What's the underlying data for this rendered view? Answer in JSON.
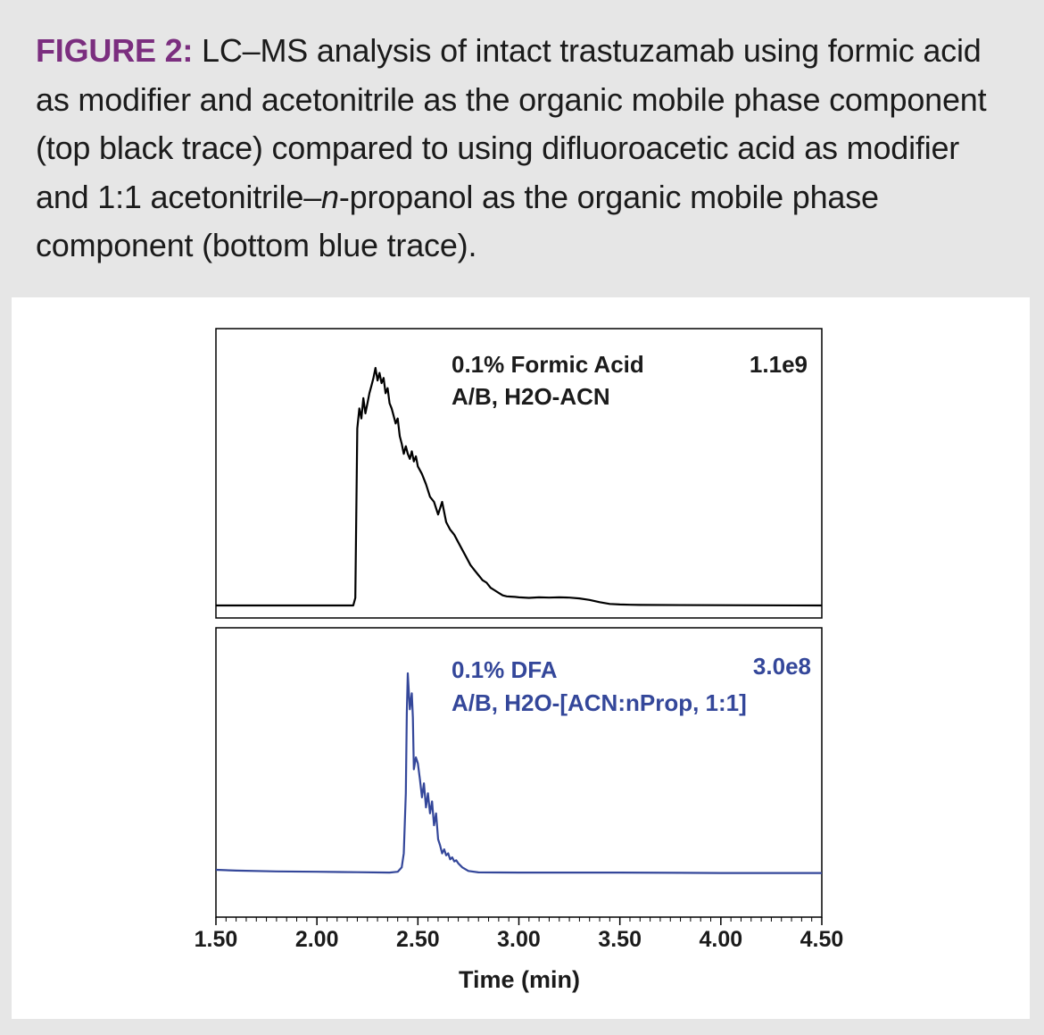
{
  "caption": {
    "label": "FIGURE 2:",
    "text_part1": " LC–MS analysis of intact trastuzamab using formic acid as modifier and acetonitrile as the organic mobile phase component (top black trace) compared to using difluoroacetic acid as modifier and 1:1 acetonitrile–",
    "text_italic": "n",
    "text_part2": "-propanol as the organic mobile phase component (bottom blue trace)."
  },
  "colors": {
    "caption_label": "#7b2e7f",
    "top_trace": "#000000",
    "bottom_trace": "#34479a",
    "background": "#e6e6e6",
    "panel": "#ffffff"
  },
  "chart_data": [
    {
      "type": "line",
      "panel": "top",
      "labels": [
        "0.1% Formic Acid",
        "A/B, H2O-ACN"
      ],
      "scale_label": "1.1e9",
      "xlim": [
        1.5,
        4.5
      ],
      "ylim": [
        0,
        1
      ],
      "x": [
        1.5,
        2.0,
        2.18,
        2.19,
        2.2,
        2.21,
        2.22,
        2.23,
        2.24,
        2.25,
        2.26,
        2.27,
        2.28,
        2.29,
        2.3,
        2.31,
        2.32,
        2.33,
        2.34,
        2.35,
        2.36,
        2.37,
        2.38,
        2.39,
        2.4,
        2.41,
        2.42,
        2.43,
        2.44,
        2.45,
        2.46,
        2.47,
        2.48,
        2.49,
        2.5,
        2.52,
        2.54,
        2.56,
        2.58,
        2.6,
        2.62,
        2.64,
        2.66,
        2.68,
        2.7,
        2.72,
        2.74,
        2.76,
        2.78,
        2.8,
        2.82,
        2.84,
        2.86,
        2.88,
        2.9,
        2.92,
        2.94,
        2.96,
        2.98,
        3.0,
        3.05,
        3.1,
        3.15,
        3.2,
        3.25,
        3.3,
        3.35,
        3.4,
        3.45,
        3.5,
        3.55,
        3.6,
        4.0,
        4.5
      ],
      "y": [
        0.0,
        0.0,
        0.0,
        0.03,
        0.7,
        0.78,
        0.74,
        0.82,
        0.76,
        0.8,
        0.84,
        0.87,
        0.9,
        0.94,
        0.89,
        0.92,
        0.88,
        0.9,
        0.84,
        0.86,
        0.8,
        0.78,
        0.75,
        0.72,
        0.74,
        0.67,
        0.64,
        0.6,
        0.63,
        0.6,
        0.58,
        0.61,
        0.57,
        0.59,
        0.55,
        0.52,
        0.48,
        0.43,
        0.41,
        0.36,
        0.41,
        0.33,
        0.3,
        0.28,
        0.25,
        0.22,
        0.19,
        0.16,
        0.14,
        0.12,
        0.1,
        0.09,
        0.07,
        0.06,
        0.05,
        0.04,
        0.036,
        0.035,
        0.034,
        0.032,
        0.03,
        0.032,
        0.031,
        0.032,
        0.031,
        0.028,
        0.022,
        0.013,
        0.006,
        0.004,
        0.003,
        0.002,
        0.001,
        0.0
      ]
    },
    {
      "type": "line",
      "panel": "bottom",
      "labels": [
        "0.1% DFA",
        "A/B, H2O-[ACN:nProp, 1:1]"
      ],
      "scale_label": "3.0e8",
      "xlim": [
        1.5,
        4.5
      ],
      "ylim": [
        0,
        1
      ],
      "xlabel": "Time (min)",
      "xticks": [
        "1.50",
        "2.00",
        "2.50",
        "3.00",
        "3.50",
        "4.00",
        "4.50"
      ],
      "x": [
        1.5,
        1.6,
        1.8,
        2.0,
        2.2,
        2.36,
        2.4,
        2.42,
        2.43,
        2.44,
        2.445,
        2.45,
        2.46,
        2.47,
        2.475,
        2.48,
        2.49,
        2.5,
        2.51,
        2.52,
        2.53,
        2.54,
        2.55,
        2.56,
        2.57,
        2.58,
        2.59,
        2.6,
        2.61,
        2.62,
        2.63,
        2.64,
        2.65,
        2.66,
        2.67,
        2.68,
        2.69,
        2.7,
        2.72,
        2.75,
        2.8,
        3.0,
        3.5,
        4.0,
        4.5
      ],
      "y": [
        0.018,
        0.014,
        0.01,
        0.008,
        0.006,
        0.004,
        0.008,
        0.03,
        0.1,
        0.4,
        0.8,
        1.0,
        0.82,
        0.9,
        0.78,
        0.52,
        0.58,
        0.55,
        0.47,
        0.38,
        0.45,
        0.33,
        0.4,
        0.3,
        0.36,
        0.24,
        0.3,
        0.17,
        0.14,
        0.1,
        0.12,
        0.09,
        0.1,
        0.07,
        0.08,
        0.06,
        0.065,
        0.05,
        0.03,
        0.012,
        0.005,
        0.004,
        0.004,
        0.002,
        0.002
      ]
    }
  ]
}
